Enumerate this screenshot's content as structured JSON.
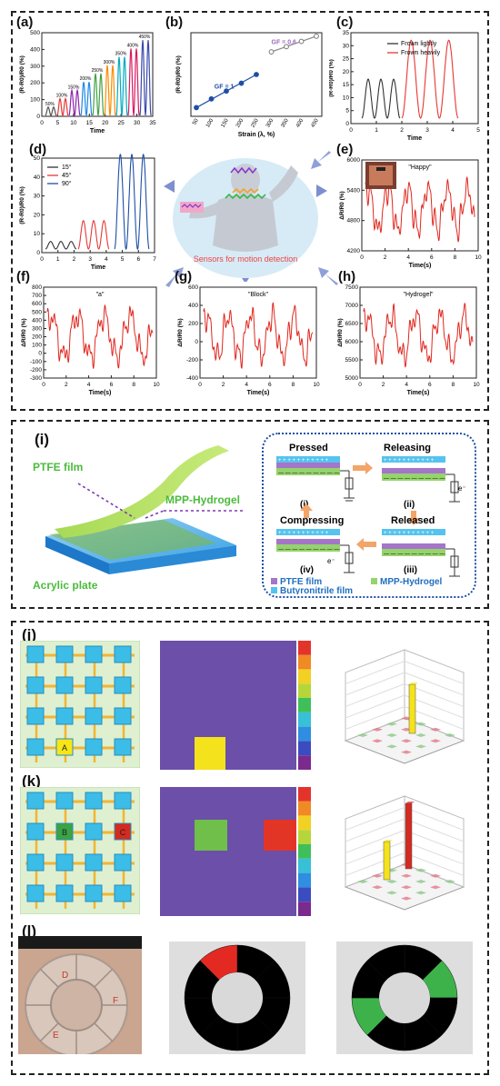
{
  "panels": {
    "a": {
      "label": "(a)",
      "ylabel": "(R-R0)/R0 (%)",
      "xlabel": "Time",
      "xticks": [
        "0",
        "5",
        "10",
        "15",
        "20",
        "25",
        "30",
        "35"
      ],
      "yticks": [
        "0",
        "100",
        "200",
        "300",
        "400",
        "500"
      ],
      "tags": [
        "50%",
        "100%",
        "150%",
        "200%",
        "250%",
        "300%",
        "350%",
        "400%",
        "450%"
      ]
    },
    "b": {
      "label": "(b)",
      "ylabel": "(R-R0)/R0 (%)",
      "xlabel": "Strain (λ, %)",
      "gf1": "GF = 1",
      "gf2": "GF = 0.6",
      "xticks": [
        "50",
        "100",
        "150",
        "200",
        "250",
        "300",
        "350",
        "400",
        "450"
      ]
    },
    "c": {
      "label": "(c)",
      "ylabel": "(R-R0)/R0 (%)",
      "xlabel": "Time",
      "legend": [
        "Frown lightly",
        "Frown heavily"
      ],
      "xticks": [
        "0",
        "1",
        "2",
        "3",
        "4",
        "5"
      ],
      "yticks": [
        "0",
        "5",
        "10",
        "15",
        "20",
        "25",
        "30",
        "35"
      ]
    },
    "d": {
      "label": "(d)",
      "ylabel": "(R-R0)/R0 (%)",
      "xlabel": "Time",
      "legend": [
        "15°",
        "45°",
        "90°"
      ],
      "xticks": [
        "0",
        "1",
        "2",
        "3",
        "4",
        "5",
        "6",
        "7"
      ],
      "yticks": [
        "0",
        "10",
        "20",
        "30",
        "40",
        "50"
      ]
    },
    "center": {
      "caption": "Sensors for motion detection"
    },
    "e": {
      "label": "(e)",
      "title": "\"Happy\"",
      "ylabel": "ΔR/R0 (%)",
      "xlabel": "Time(s)",
      "xticks": [
        "0",
        "2",
        "4",
        "6",
        "8",
        "10"
      ],
      "yticks": [
        "4200",
        "4800",
        "5400",
        "6000"
      ]
    },
    "f": {
      "label": "(f)",
      "title": "\"a\"",
      "ylabel": "ΔR/R0 (%)",
      "xlabel": "Time(s)",
      "xticks": [
        "0",
        "2",
        "4",
        "6",
        "8",
        "10"
      ],
      "yticks": [
        "-300",
        "-200",
        "-100",
        "0",
        "100",
        "200",
        "300",
        "400",
        "500",
        "600",
        "700",
        "800"
      ]
    },
    "g": {
      "label": "(g)",
      "title": "\"Block\"",
      "ylabel": "ΔR/R0 (%)",
      "xlabel": "Time(s)",
      "xticks": [
        "0",
        "2",
        "4",
        "6",
        "8",
        "10"
      ],
      "yticks": [
        "-400",
        "-200",
        "0",
        "200",
        "400",
        "600"
      ]
    },
    "h": {
      "label": "(h)",
      "title": "\"Hydrogel\"",
      "ylabel": "ΔR/R0 (%)",
      "xlabel": "Time(s)",
      "xticks": [
        "0",
        "2",
        "4",
        "6",
        "8",
        "10"
      ],
      "yticks": [
        "5000",
        "5500",
        "6000",
        "6500",
        "7000",
        "7500"
      ]
    },
    "i": {
      "label": "(i)",
      "ptfe": "PTFE film",
      "mpp": "MPP-Hydrogel",
      "acrylic": "Acrylic plate",
      "states": [
        "Pressed",
        "Releasing",
        "Released",
        "Compressing"
      ],
      "roman": [
        "(i)",
        "(ii)",
        "(iii)",
        "(iv)"
      ],
      "legend": [
        "PTFE film",
        "MPP-Hydrogel",
        "Butyronitrile film"
      ],
      "electron": "e⁻"
    },
    "j": {
      "label": "(j)",
      "cell": "A"
    },
    "k": {
      "label": "(k)",
      "cells": [
        "B",
        "C"
      ]
    },
    "l": {
      "label": "(l)",
      "photo_letters": [
        "D",
        "F",
        "E"
      ]
    }
  },
  "colors": {
    "red": "#e32b24",
    "blue": "#2b64c6",
    "purple": "#6a4fa3",
    "yellow": "#f7e617",
    "green": "#6cc04a",
    "cyan": "#3bbde8",
    "gold": "#f2b533"
  },
  "chart_data": [
    {
      "panel": "a",
      "type": "line",
      "x_range": [
        0,
        37
      ],
      "y_range": [
        0,
        500
      ],
      "series": [
        {
          "values_peaks": [
            50,
            100,
            150,
            200,
            250,
            300,
            350,
            400,
            450
          ]
        }
      ]
    },
    {
      "panel": "b",
      "type": "scatter",
      "x": [
        50,
        100,
        150,
        200,
        250,
        300,
        350,
        400,
        450
      ],
      "y": [
        90,
        140,
        185,
        230,
        280,
        410,
        440,
        470,
        500
      ]
    },
    {
      "panel": "c",
      "type": "line",
      "series": [
        {
          "name": "Frown lightly",
          "peaks": [
            15,
            14,
            16
          ]
        },
        {
          "name": "Frown heavily",
          "peaks": [
            31,
            30,
            29
          ]
        }
      ]
    },
    {
      "panel": "d",
      "type": "line",
      "series": [
        {
          "name": "15°",
          "peak": 4
        },
        {
          "name": "45°",
          "peak": 15
        },
        {
          "name": "90°",
          "peak": 50
        }
      ]
    }
  ]
}
